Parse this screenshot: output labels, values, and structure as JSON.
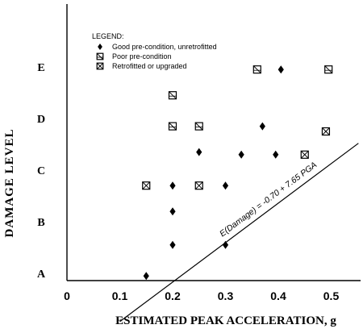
{
  "chart_data": {
    "type": "scatter",
    "xlabel": "ESTIMATED PEAK ACCELERATION, g",
    "ylabel": "DAMAGE LEVEL",
    "xlim": [
      0,
      0.56
    ],
    "ylim": [
      0.6,
      6.1
    ],
    "x_ticks": [
      {
        "value": 0,
        "label": "0"
      },
      {
        "value": 0.1,
        "label": "0.1"
      },
      {
        "value": 0.2,
        "label": "0.2"
      },
      {
        "value": 0.3,
        "label": "0.3"
      },
      {
        "value": 0.4,
        "label": "0.4"
      },
      {
        "value": 0.5,
        "label": "0.5"
      }
    ],
    "y_ticks": [
      {
        "value": 1,
        "label": "A"
      },
      {
        "value": 2,
        "label": "B"
      },
      {
        "value": 3,
        "label": "C"
      },
      {
        "value": 4,
        "label": "D"
      },
      {
        "value": 5,
        "label": "E"
      }
    ],
    "legend": {
      "title": "LEGEND:",
      "position": "top-left"
    },
    "series": [
      {
        "name": "Good pre-condition, unretrofitted",
        "marker": "diamond",
        "points": [
          [
            0.15,
            0.95
          ],
          [
            0.2,
            1.55
          ],
          [
            0.2,
            2.2
          ],
          [
            0.2,
            2.7
          ],
          [
            0.25,
            3.35
          ],
          [
            0.3,
            1.55
          ],
          [
            0.3,
            2.7
          ],
          [
            0.33,
            3.3
          ],
          [
            0.37,
            3.85
          ],
          [
            0.395,
            3.3
          ],
          [
            0.405,
            4.95
          ]
        ]
      },
      {
        "name": "Poor pre-condition",
        "marker": "square-hatched",
        "points": [
          [
            0.2,
            4.45
          ],
          [
            0.2,
            3.85
          ],
          [
            0.25,
            3.85
          ],
          [
            0.36,
            4.95
          ],
          [
            0.495,
            4.95
          ]
        ]
      },
      {
        "name": "Retrofitted or upgraded",
        "marker": "square-cross",
        "points": [
          [
            0.15,
            2.7
          ],
          [
            0.25,
            2.7
          ],
          [
            0.45,
            3.3
          ],
          [
            0.49,
            3.75
          ]
        ]
      }
    ],
    "fit_line": {
      "label": "E(Damage) = -0.70 + 7.65 PGA",
      "intercept": -0.7,
      "slope": 7.65,
      "x_range": [
        0.1,
        0.57
      ]
    },
    "colors": {
      "ink": "#000000",
      "background": "#ffffff"
    }
  }
}
